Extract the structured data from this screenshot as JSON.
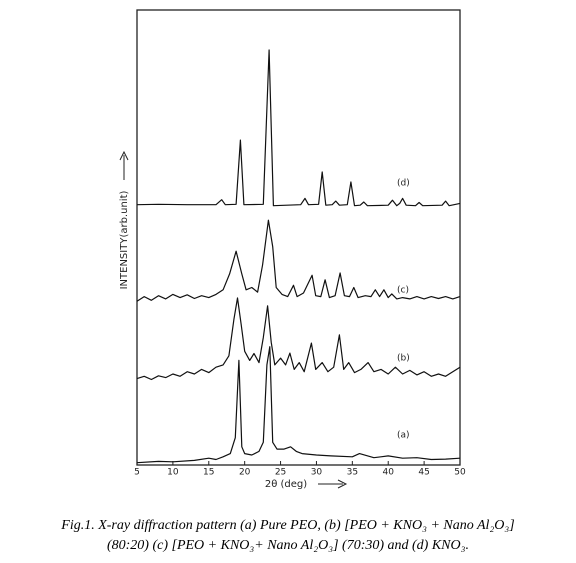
{
  "chart_data": {
    "type": "line",
    "xlabel": "2θ (deg)",
    "ylabel": "INTENSITY(arb.unit)",
    "caption": [
      "Fig.1. X-ray diffraction pattern (a) Pure PEO, (b) [PEO + KNO₃ + Nano Al₂O₃]",
      "(80:20) (c) [PEO + KNO₃+ Nano Al₂O₃] (70:30) and (d) KNO₃."
    ],
    "xlim": [
      5,
      50
    ],
    "xticks": [
      5,
      10,
      15,
      20,
      25,
      30,
      35,
      40,
      45,
      50
    ],
    "ylim": [
      0,
      100
    ],
    "series": [
      {
        "name": "(a)",
        "color": "#111111",
        "x": [
          5,
          8,
          10,
          13,
          15,
          16,
          17,
          18,
          18.7,
          19.2,
          19.6,
          20,
          21,
          22,
          22.6,
          23.1,
          23.5,
          23.9,
          24.5,
          25.5,
          26.4,
          27.2,
          28,
          30,
          32,
          35,
          36,
          38,
          40,
          42,
          44,
          46,
          48,
          50
        ],
        "values": [
          0.5,
          0.8,
          0.7,
          1.0,
          1.5,
          1.2,
          1.8,
          2.5,
          6,
          23,
          4,
          2.5,
          2.2,
          3,
          5,
          22,
          26,
          5,
          3.5,
          3.5,
          4.0,
          3,
          2.5,
          2.2,
          2,
          1.8,
          2.5,
          1.6,
          2,
          1.5,
          1.6,
          1.2,
          1.3,
          1.5
        ]
      },
      {
        "name": "(b)",
        "color": "#111111",
        "x": [
          5,
          6,
          7,
          8,
          9,
          10,
          11,
          12,
          13,
          14,
          15,
          16,
          17,
          17.8,
          18.5,
          19,
          19.5,
          20,
          20.7,
          21.3,
          22,
          22.6,
          23.2,
          23.7,
          24.2,
          25,
          25.7,
          26.3,
          26.9,
          27.6,
          28.3,
          29.3,
          29.9,
          30.8,
          31.6,
          32.4,
          33.2,
          33.8,
          34.5,
          35.3,
          36.2,
          37.2,
          38,
          39,
          40,
          41,
          42,
          43,
          44,
          45,
          46,
          47,
          48,
          49,
          50
        ],
        "values": [
          19,
          19.5,
          18.8,
          19.6,
          19.2,
          20,
          19.5,
          20.5,
          20,
          21,
          20.3,
          21.5,
          22,
          24,
          32,
          36.7,
          31,
          25,
          23,
          24.5,
          22.5,
          28,
          35,
          27,
          22,
          23.5,
          22,
          24.6,
          21,
          22.5,
          20.5,
          26.8,
          21,
          22.5,
          20.5,
          21.5,
          28.6,
          21,
          22.5,
          20.3,
          21,
          22.5,
          20.5,
          21,
          20,
          21.5,
          20,
          20.8,
          19.8,
          20.5,
          19.5,
          20,
          19.5,
          20.5,
          21.5
        ]
      },
      {
        "name": "(c)",
        "color": "#111111",
        "x": [
          5,
          6,
          7,
          8,
          9,
          10,
          11,
          12,
          13,
          14,
          15,
          16,
          17,
          17.9,
          18.8,
          19.6,
          20.2,
          21,
          21.8,
          22.5,
          23.3,
          23.9,
          24.4,
          25.2,
          26,
          26.8,
          27.3,
          28.2,
          29.4,
          29.9,
          30.6,
          31.2,
          31.8,
          32.6,
          33.3,
          33.9,
          34.6,
          35.2,
          35.8,
          36.8,
          37.6,
          38.2,
          38.8,
          39.4,
          40,
          40.5,
          41.2,
          42,
          43,
          44,
          45,
          46,
          47,
          48,
          49,
          50
        ],
        "values": [
          36,
          37,
          36.2,
          37.2,
          36.5,
          37.5,
          36.8,
          37.4,
          36.6,
          37.2,
          36.8,
          37.5,
          38.5,
          42,
          47,
          42,
          38.5,
          39,
          38,
          44,
          53.8,
          48,
          39,
          37.5,
          37,
          39.5,
          37,
          37.8,
          41.7,
          37.2,
          37,
          40.7,
          36.8,
          37.2,
          42.2,
          37.2,
          37,
          39,
          36.8,
          37.2,
          37,
          38.5,
          37,
          38.5,
          36.8,
          37.6,
          36.5,
          36.8,
          36.5,
          37,
          36.5,
          37,
          36.6,
          37,
          36.5,
          37
        ]
      },
      {
        "name": "(d)",
        "color": "#111111",
        "x": [
          5,
          8,
          12,
          16,
          16.8,
          17.3,
          18.8,
          19.4,
          19.9,
          22.6,
          23.4,
          24.0,
          27.8,
          28.4,
          28.9,
          30.3,
          30.8,
          31.3,
          32.2,
          32.7,
          33.2,
          34.3,
          34.8,
          35.3,
          36.1,
          36.6,
          37.1,
          40,
          40.6,
          41.2,
          41.6,
          42,
          42.5,
          43.8,
          44.3,
          44.8,
          47.5,
          48,
          48.5,
          50
        ],
        "values": [
          57.2,
          57.3,
          57.2,
          57.2,
          58.3,
          57.2,
          57.3,
          71.4,
          57.2,
          57.3,
          91.2,
          57,
          57.2,
          58.6,
          57.2,
          57.3,
          64.4,
          57.1,
          57.2,
          58,
          57.1,
          57.2,
          62.2,
          57,
          57.1,
          57.8,
          57,
          57.1,
          58.2,
          57,
          57.5,
          58.6,
          57.1,
          57,
          57.7,
          57,
          57.1,
          58,
          57,
          57.5
        ]
      }
    ]
  }
}
